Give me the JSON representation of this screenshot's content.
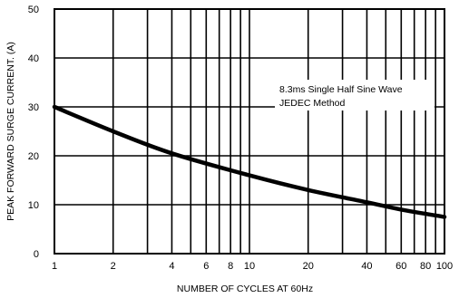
{
  "chart_data": {
    "type": "line",
    "xlabel": "NUMBER OF CYCLES AT 60Hz",
    "ylabel": "PEAK FORWARD SURGE CURRENT. (A)",
    "x_scale": "log",
    "xlim": [
      1,
      100
    ],
    "ylim": [
      0,
      50
    ],
    "grid": true,
    "x_tick_labels": [
      "1",
      "2",
      "4",
      "6",
      "8",
      "10",
      "20",
      "40",
      "60",
      "80",
      "100"
    ],
    "x_gridlines": [
      1,
      2,
      3,
      4,
      5,
      6,
      7,
      8,
      9,
      10,
      20,
      30,
      40,
      50,
      60,
      70,
      80,
      90,
      100
    ],
    "y_ticks": [
      0,
      10,
      20,
      30,
      40,
      50
    ],
    "annotation": {
      "line1": "8.3ms Single Half Sine Wave",
      "line2": "JEDEC Method"
    },
    "series": [
      {
        "x": [
          1,
          2,
          4,
          10,
          20,
          40,
          60,
          100
        ],
        "y": [
          30,
          25,
          20.5,
          16,
          13,
          10.5,
          9,
          7.5
        ]
      }
    ]
  }
}
